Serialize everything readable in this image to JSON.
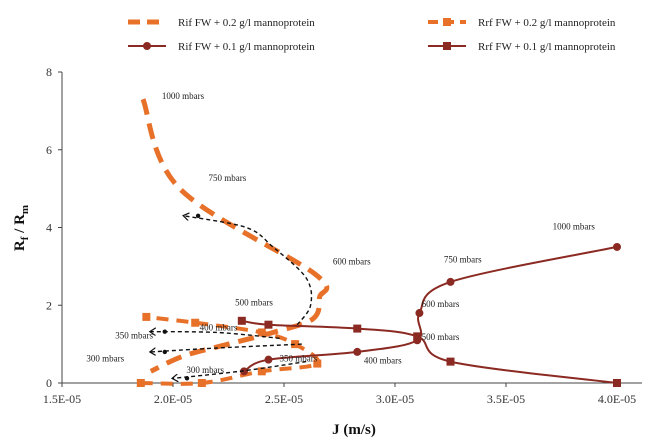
{
  "chart_data": {
    "type": "line",
    "xlabel": "J (m/s)",
    "ylabel_main": "R",
    "ylabel_sub1": "f",
    "ylabel_sep": " / R",
    "ylabel_sub2": "m",
    "xlim": [
      1.5e-05,
      4e-05
    ],
    "ylim": [
      0,
      8
    ],
    "x_tick_labels": [
      "1.5E-05",
      "2.0E-05",
      "2.5E-05",
      "3.0E-05",
      "3.5E-05",
      "4.0E-05"
    ],
    "x_ticks": [
      1.5e-05,
      2e-05,
      2.5e-05,
      3e-05,
      3.5e-05,
      4e-05
    ],
    "y_ticks": [
      0,
      2,
      4,
      6,
      8
    ],
    "grid": false,
    "legend_position": "top",
    "series": [
      {
        "name": "Rif FW + 0.2 g/l mannoprotein",
        "color": "#e8712a",
        "style": "dashed",
        "marker": "none",
        "width": 5,
        "points": [
          [
            1.865e-05,
            7.3
          ],
          [
            2.03e-05,
            5.0
          ],
          [
            2.64e-05,
            2.8
          ],
          [
            2.66e-05,
            2.2
          ],
          [
            2.63e-05,
            1.65
          ],
          [
            2.45e-05,
            1.3
          ],
          [
            2.25e-05,
            1.0
          ],
          [
            2.05e-05,
            0.7
          ],
          [
            1.9e-05,
            0.3
          ]
        ]
      },
      {
        "name": "Rrf FW + 0.2 g/l mannoprotein",
        "color": "#e8712a",
        "style": "dashed",
        "marker": "square",
        "width": 4,
        "points": [
          [
            1.855e-05,
            0.0
          ],
          [
            2.13e-05,
            0.0
          ],
          [
            2.4e-05,
            0.3
          ],
          [
            2.65e-05,
            0.5
          ],
          [
            2.55e-05,
            1.0
          ],
          [
            2.4e-05,
            1.3
          ],
          [
            2.1e-05,
            1.55
          ],
          [
            1.88e-05,
            1.7
          ]
        ]
      },
      {
        "name": "Rif FW + 0.1 g/l mannoprotein",
        "color": "#8b2a22",
        "style": "solid",
        "marker": "circle",
        "width": 2,
        "points": [
          [
            2.32e-05,
            0.3
          ],
          [
            2.43e-05,
            0.6
          ],
          [
            2.83e-05,
            0.8
          ],
          [
            3.1e-05,
            1.1
          ],
          [
            3.11e-05,
            1.8
          ],
          [
            3.25e-05,
            2.6
          ],
          [
            4e-05,
            3.5
          ]
        ]
      },
      {
        "name": "Rrf FW + 0.1 g/l mannoprotein",
        "color": "#8b2a22",
        "style": "solid",
        "marker": "square",
        "width": 2,
        "points": [
          [
            2.31e-05,
            1.6
          ],
          [
            2.43e-05,
            1.5
          ],
          [
            2.83e-05,
            1.4
          ],
          [
            3.1e-05,
            1.2
          ],
          [
            3.25e-05,
            0.55
          ],
          [
            4e-05,
            0.0
          ]
        ]
      }
    ],
    "annotations": [
      {
        "text": "1000 mbars",
        "x": 1.95e-05,
        "y": 7.3
      },
      {
        "text": "750 mbars",
        "x": 2.16e-05,
        "y": 5.2
      },
      {
        "text": "600 mbars",
        "x": 2.72e-05,
        "y": 3.05
      },
      {
        "text": "500 mbars",
        "x": 2.28e-05,
        "y": 2.0
      },
      {
        "text": "400 mbars",
        "x": 2.12e-05,
        "y": 1.35
      },
      {
        "text": "350 mbars",
        "x": 1.74e-05,
        "y": 1.15
      },
      {
        "text": "300 mbars",
        "x": 1.61e-05,
        "y": 0.55
      },
      {
        "text": "300 mbars",
        "x": 2.06e-05,
        "y": 0.26
      },
      {
        "text": "350 mbars",
        "x": 2.48e-05,
        "y": 0.55
      },
      {
        "text": "400 mbars",
        "x": 2.86e-05,
        "y": 0.5
      },
      {
        "text": "500 mbars",
        "x": 3.12e-05,
        "y": 1.1
      },
      {
        "text": "600 mbars",
        "x": 3.12e-05,
        "y": 1.95
      },
      {
        "text": "750 mbars",
        "x": 3.22e-05,
        "y": 3.1
      },
      {
        "text": "1000 mbars",
        "x": 3.71e-05,
        "y": 3.95
      }
    ],
    "arrows": [
      {
        "points": [
          [
            2.56e-05,
            1.5
          ],
          [
            2.62e-05,
            2.0
          ],
          [
            2.6e-05,
            2.7
          ],
          [
            2.45e-05,
            3.5
          ],
          [
            2.33e-05,
            4.0
          ],
          [
            2.05e-05,
            4.3
          ]
        ]
      },
      {
        "points": [
          [
            2.48e-05,
            1.15
          ],
          [
            2.2e-05,
            1.3
          ],
          [
            1.9e-05,
            1.32
          ]
        ]
      },
      {
        "points": [
          [
            2.58e-05,
            1.0
          ],
          [
            2.2e-05,
            0.9
          ],
          [
            1.9e-05,
            0.8
          ]
        ]
      },
      {
        "points": [
          [
            2.6e-05,
            0.55
          ],
          [
            2.3e-05,
            0.3
          ],
          [
            2e-05,
            0.12
          ]
        ]
      }
    ]
  }
}
